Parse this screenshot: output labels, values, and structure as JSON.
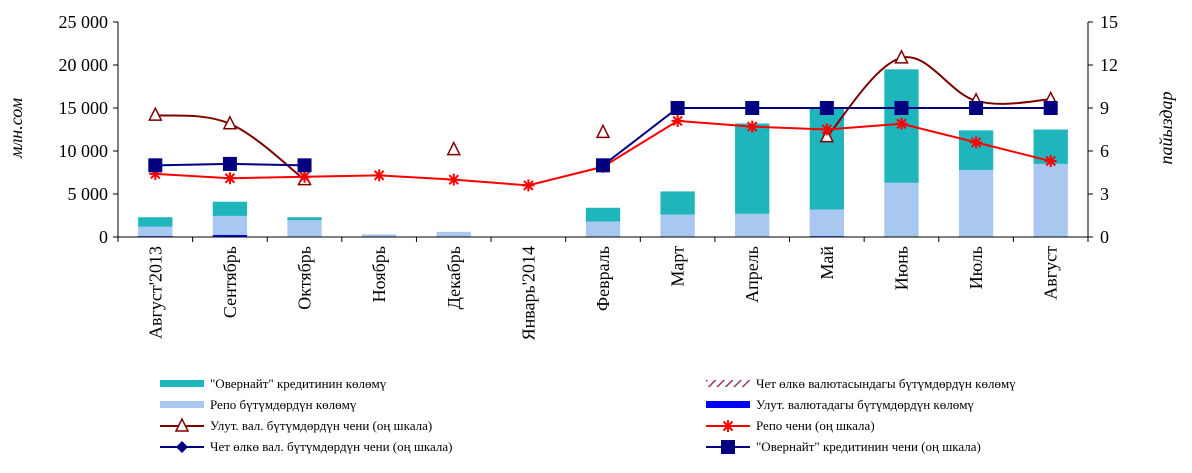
{
  "chart_data": {
    "type": "bar",
    "title": "",
    "left_axis": {
      "label": "млн.сом",
      "ylim": [
        0,
        25000
      ],
      "ticks": [
        "0",
        "5 000",
        "10 000",
        "15 000",
        "20 000",
        "25 000"
      ],
      "tick_values": [
        0,
        5000,
        10000,
        15000,
        20000,
        25000
      ]
    },
    "right_axis": {
      "label": "пайыздар",
      "ylim": [
        0,
        15
      ],
      "ticks": [
        "0",
        "3",
        "6",
        "9",
        "12",
        "15"
      ],
      "tick_values": [
        0,
        3,
        6,
        9,
        12,
        15
      ]
    },
    "categories": [
      "Август'2013",
      "Сентябрь",
      "Октябрь",
      "Ноябрь",
      "Декабрь",
      "Январь'2014",
      "Февраль",
      "Март",
      "Апрель",
      "Май",
      "Июнь",
      "Июль",
      "Август"
    ],
    "bar_series": [
      {
        "name": "Улут. валютадагы бүтүмдөрдүн көлөмү",
        "color": "#0000ff",
        "values": [
          100,
          250,
          50,
          0,
          0,
          0,
          0,
          0,
          0,
          100,
          0,
          0,
          0
        ]
      },
      {
        "name": "Чет өлкө валютасындагы бүтүмдөрдүн көлөмү",
        "color": "#993366",
        "values": [
          0,
          0,
          0,
          0,
          0,
          0,
          0,
          0,
          0,
          0,
          0,
          0,
          0
        ]
      },
      {
        "name": "Репо бүтүмдөрдүн көлөмү",
        "color": "#a9c8f0",
        "values": [
          1100,
          2200,
          1900,
          300,
          600,
          0,
          1800,
          2600,
          2700,
          3100,
          6300,
          7800,
          8500
        ]
      },
      {
        "name": "\"Овернайт\" кредитинин көлөмү",
        "color": "#1fb5bd",
        "values": [
          1100,
          1650,
          350,
          0,
          0,
          0,
          1600,
          2700,
          10500,
          11800,
          13200,
          4600,
          4000
        ]
      }
    ],
    "line_series": [
      {
        "name": "Улут. вал. бүтүмдөрдүн чени (оң шкала)",
        "color": "#800000",
        "marker": "triangle",
        "values": [
          8.5,
          7.9,
          4.0,
          null,
          6.1,
          null,
          7.3,
          null,
          null,
          7.0,
          12.5,
          9.5,
          9.6
        ]
      },
      {
        "name": "Репо чени (оң шкала)",
        "color": "#ff0000",
        "marker": "star",
        "values": [
          4.4,
          4.1,
          4.2,
          4.3,
          4.0,
          3.6,
          4.9,
          8.1,
          7.7,
          7.5,
          7.9,
          6.6,
          5.3
        ]
      },
      {
        "name": "Чет өлкө вал. бүтүмдөрдүн чени (оң шкала)",
        "color": "#000080",
        "marker": "diamond",
        "values": [
          null,
          null,
          null,
          null,
          null,
          null,
          null,
          null,
          null,
          null,
          null,
          null,
          null
        ]
      },
      {
        "name": "\"Овернайт\" кредитинин чени (оң шкала)",
        "color": "#000080",
        "marker": "square",
        "values": [
          5.0,
          5.1,
          5.0,
          null,
          null,
          null,
          5.0,
          9.0,
          9.0,
          9.0,
          9.0,
          9.0,
          9.0
        ]
      }
    ],
    "legend": {
      "placement": "bottom",
      "entries": [
        {
          "label": "\"Овернайт\" кредитинин көлөмү",
          "kind": "bar",
          "color": "#1fb5bd"
        },
        {
          "label": "Чет өлкө валютасындагы бүтүмдөрдүн көлөмү",
          "kind": "hatch",
          "color": "#993366"
        },
        {
          "label": "Репо бүтүмдөрдүн көлөмү",
          "kind": "bar",
          "color": "#a9c8f0"
        },
        {
          "label": "Улут. валютадагы бүтүмдөрдүн көлөмү",
          "kind": "bar",
          "color": "#0000ff"
        },
        {
          "label": "Улут. вал. бүтүмдөрдүн чени (оң шкала)",
          "kind": "line",
          "color": "#800000",
          "marker": "triangle"
        },
        {
          "label": "Репо чени (оң шкала)",
          "kind": "line",
          "color": "#ff0000",
          "marker": "star"
        },
        {
          "label": "Чет өлкө вал. бүтүмдөрдүн чени (оң шкала)",
          "kind": "line",
          "color": "#000080",
          "marker": "diamond"
        },
        {
          "label": "\"Овернайт\" кредитинин чени (оң шкала)",
          "kind": "line",
          "color": "#000080",
          "marker": "square"
        }
      ]
    },
    "grid": false
  }
}
